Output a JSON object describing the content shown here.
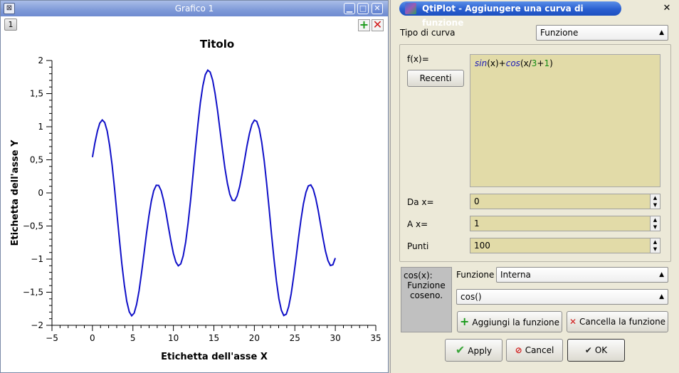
{
  "left_window": {
    "title": "Grafico 1",
    "layer_tab": "1",
    "buttons": {
      "minimize": "▁",
      "maximize": "□",
      "close": "✕"
    },
    "add_layer_icon": "plus-icon",
    "remove_layer_icon": "x-icon"
  },
  "chart_data": {
    "type": "line",
    "title": "Titolo",
    "xlabel": "Etichetta dell'asse X",
    "ylabel": "Etichetta dell'asse Y",
    "xlim": [
      -5,
      35
    ],
    "ylim": [
      -2,
      2
    ],
    "x_ticks": [
      "−5",
      "0",
      "5",
      "10",
      "15",
      "20",
      "25",
      "30",
      "35"
    ],
    "x_tick_values": [
      -5,
      0,
      5,
      10,
      15,
      20,
      25,
      30,
      35
    ],
    "y_ticks": [
      "2",
      "1,5",
      "1",
      "0,5",
      "0",
      "−0,5",
      "−1",
      "−1,5",
      "−2"
    ],
    "y_tick_values": [
      2,
      1.5,
      1,
      0.5,
      0,
      -0.5,
      -1,
      -1.5,
      -2
    ],
    "series": [
      {
        "expression": "sin(x)+cos(x/3+1)",
        "x_from": 0,
        "x_to": 30,
        "points": 100,
        "color": "#1010c8"
      }
    ],
    "grid": false
  },
  "dialog": {
    "title": "QtiPlot - Aggiungere una curva di funzione",
    "curve_type_label": "Tipo di curva",
    "curve_type_value": "Funzione",
    "fx_label": "f(x)=",
    "recent_button": "Recenti",
    "formula_parts": [
      {
        "t": "sin",
        "k": "fn"
      },
      {
        "t": "(x)+",
        "k": "p"
      },
      {
        "t": "cos",
        "k": "fn"
      },
      {
        "t": "(x/",
        "k": "p"
      },
      {
        "t": "3",
        "k": "num"
      },
      {
        "t": "+",
        "k": "p"
      },
      {
        "t": "1",
        "k": "num"
      },
      {
        "t": ")",
        "k": "p"
      }
    ],
    "from_label": "Da x=",
    "from_value": "0",
    "to_label": "A x=",
    "to_value": "1",
    "points_label": "Punti",
    "points_value": "100",
    "desc_title": "cos(x):",
    "desc_line2": "Funzione",
    "desc_line3": "coseno.",
    "function_label": "Funzione",
    "function_category": "Interna",
    "function_value": "cos()",
    "add_function_button": "Aggiungi la funzione",
    "delete_function_button": "Cancella la funzione",
    "apply_button": "Apply",
    "cancel_button": "Cancel",
    "ok_button": "OK",
    "close_glyph": "✕"
  }
}
